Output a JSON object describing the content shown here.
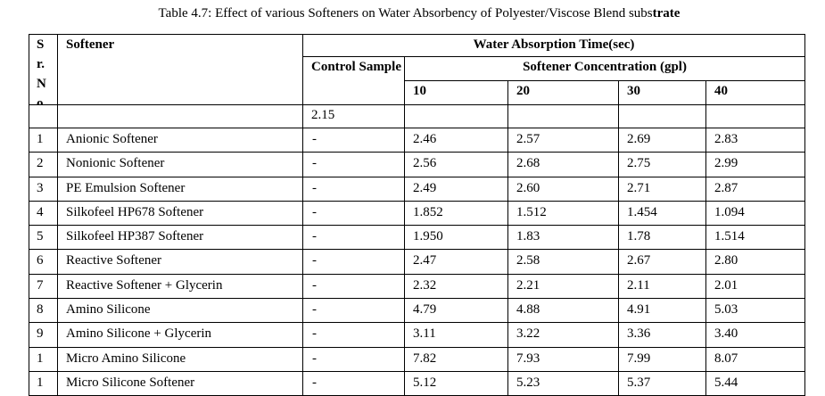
{
  "title": {
    "main": "Table 4.7: Effect of various Softeners on Water Absorbency of Polyester/Viscose Blend subs",
    "bold_tail": "trate"
  },
  "headers": {
    "sr_no": "Sr.No",
    "softener": "Softener",
    "water_absorption": "Water Absorption Time(sec)",
    "control_sample": "Control Sample",
    "softener_concentration": "Softener Concentration (gpl)",
    "concentrations": [
      "10",
      "20",
      "30",
      "40"
    ]
  },
  "control_value": "2.15",
  "rows": [
    {
      "sr": "1",
      "name": "Anionic Softener",
      "control": "-",
      "v": [
        "2.46",
        "2.57",
        "2.69",
        "2.83"
      ]
    },
    {
      "sr": "2",
      "name": "Nonionic Softener",
      "control": "-",
      "v": [
        "2.56",
        "2.68",
        "2.75",
        "2.99"
      ]
    },
    {
      "sr": "3",
      "name": "PE Emulsion Softener",
      "control": "-",
      "v": [
        "2.49",
        "2.60",
        "2.71",
        "2.87"
      ]
    },
    {
      "sr": "4",
      "name": "Silkofeel HP678 Softener",
      "control": "-",
      "v": [
        "1.852",
        "1.512",
        "1.454",
        "1.094"
      ]
    },
    {
      "sr": "5",
      "name": "Silkofeel HP387 Softener",
      "control": "-",
      "v": [
        "1.950",
        "1.83",
        "1.78",
        "1.514"
      ]
    },
    {
      "sr": "6",
      "name": "Reactive Softener",
      "control": "-",
      "v": [
        "2.47",
        "2.58",
        "2.67",
        "2.80"
      ]
    },
    {
      "sr": "7",
      "name": "Reactive Softener + Glycerin",
      "control": "-",
      "v": [
        "2.32",
        "2.21",
        "2.11",
        "2.01"
      ]
    },
    {
      "sr": "8",
      "name": "Amino Silicone",
      "control": "-",
      "v": [
        "4.79",
        "4.88",
        "4.91",
        "5.03"
      ]
    },
    {
      "sr": "9",
      "name": "Amino Silicone + Glycerin",
      "control": "-",
      "v": [
        "3.11",
        "3.22",
        "3.36",
        "3.40"
      ]
    },
    {
      "sr": "1",
      "name": "Micro Amino Silicone",
      "control": "-",
      "v": [
        "7.82",
        "7.93",
        "7.99",
        "8.07"
      ]
    },
    {
      "sr": "1",
      "name": "Micro Silicone Softener",
      "control": "-",
      "v": [
        "5.12",
        "5.23",
        "5.37",
        "5.44"
      ]
    }
  ]
}
